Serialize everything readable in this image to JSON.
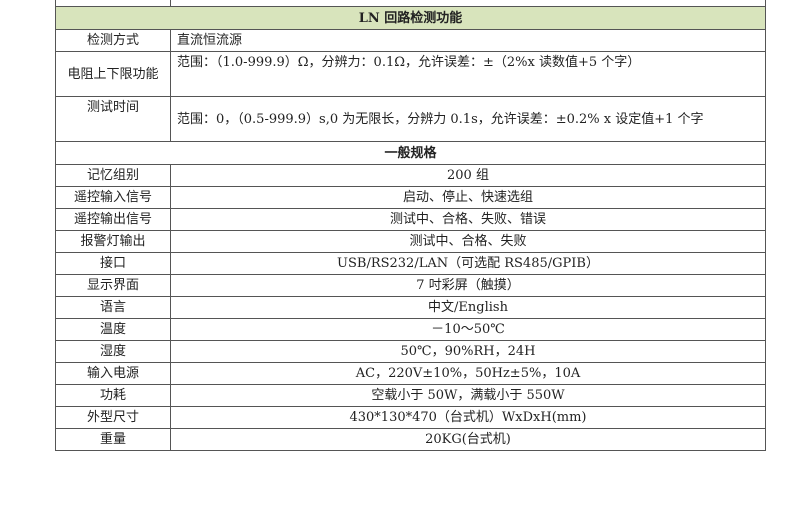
{
  "ln_section": {
    "title": "LN 回路检测功能",
    "rows": [
      {
        "label": "检测方式",
        "value": "直流恒流源"
      },
      {
        "label": "电阻上下限功能",
        "value": "范围：（1.0-999.9）Ω，分辨力：0.1Ω，允许误差：±（2%x 读数值+5 个字）"
      },
      {
        "label": "测试时间",
        "value": "范围：0，（0.5-999.9）s,0 为无限长，分辨力 0.1s，允许误差：±0.2% x 设定值+1 个字"
      }
    ]
  },
  "general_section": {
    "title": "一般规格",
    "rows": [
      {
        "label": "记忆组别",
        "value": "200 组"
      },
      {
        "label": "遥控输入信号",
        "value": "启动、停止、快速选组"
      },
      {
        "label": "遥控输出信号",
        "value": "测试中、合格、失败、错误"
      },
      {
        "label": "报警灯输出",
        "value": "测试中、合格、失败"
      },
      {
        "label": "接口",
        "value": "USB/RS232/LAN（可选配 RS485/GPIB）"
      },
      {
        "label": "显示界面",
        "value": "7 吋彩屏（触摸）"
      },
      {
        "label": "语言",
        "value": "中文/English"
      },
      {
        "label": "温度",
        "value": "－10～50℃"
      },
      {
        "label": "湿度",
        "value": "50℃，90%RH，24H"
      },
      {
        "label": "输入电源",
        "value": "AC，220V±10%，50Hz±5%，10A"
      },
      {
        "label": "功耗",
        "value": "空载小于 50W，满载小于 550W"
      },
      {
        "label": "外型尺寸",
        "value": "430*130*470（台式机）WxDxH(mm)"
      },
      {
        "label": "重量",
        "value": "20KG(台式机)"
      }
    ]
  },
  "colors": {
    "section_header_green": "#d8e4bc"
  }
}
